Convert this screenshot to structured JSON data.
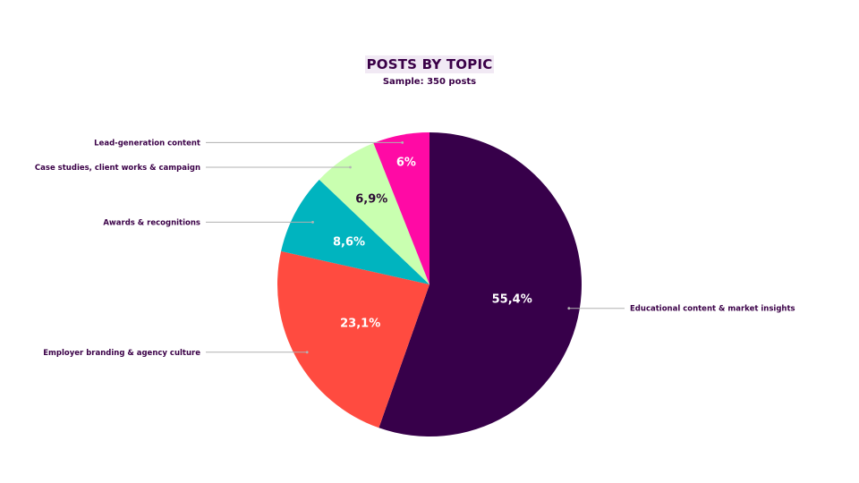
{
  "chart_data": {
    "type": "pie",
    "title": "POSTS BY TOPIC",
    "subtitle": "Sample: 350 posts",
    "slices": [
      {
        "label": "Educational content & market insights",
        "value": 55.4,
        "display": "55,4%",
        "color": "#37004a",
        "text_color": "#ffffff"
      },
      {
        "label": "Employer branding & agency culture",
        "value": 23.1,
        "display": "23,1%",
        "color": "#ff4b40",
        "text_color": "#ffffff"
      },
      {
        "label": "Awards & recognitions",
        "value": 8.6,
        "display": "8,6%",
        "color": "#00b4bf",
        "text_color": "#ffffff"
      },
      {
        "label": "Case studies, client works & campaign",
        "value": 6.9,
        "display": "6,9%",
        "color": "#c9ffb0",
        "text_color": "#2b0a33"
      },
      {
        "label": "Lead-generation content",
        "value": 6.0,
        "display": "6%",
        "color": "#ff0aa5",
        "text_color": "#ffffff"
      }
    ]
  }
}
